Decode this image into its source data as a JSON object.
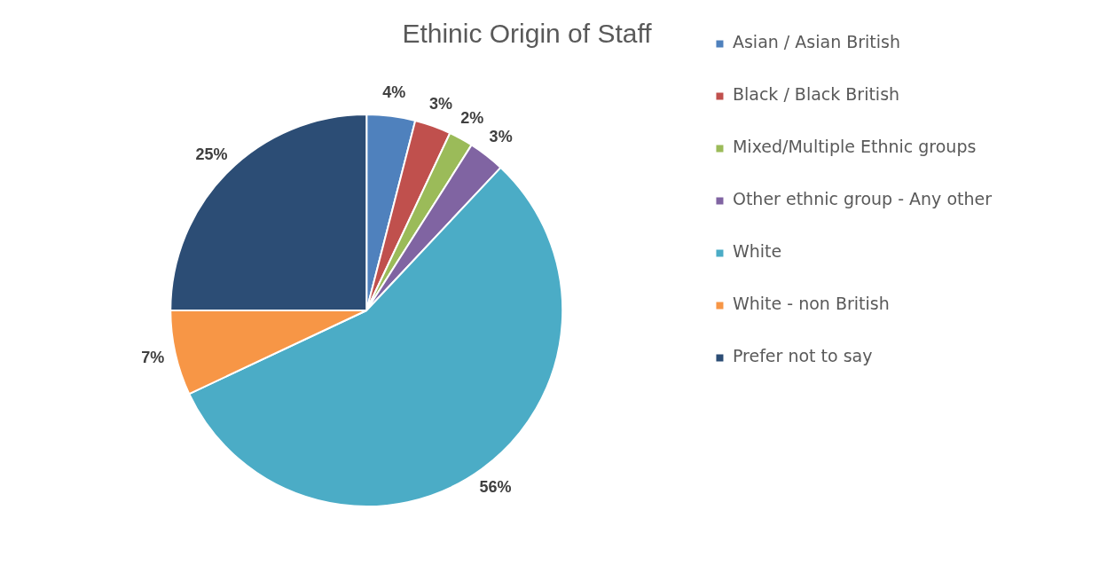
{
  "chart_data": {
    "type": "pie",
    "title": "Ethinic Origin of Staff",
    "categories": [
      "Asian / Asian British",
      "Black / Black British",
      "Mixed/Multiple Ethnic groups",
      "Other ethnic group - Any other",
      "White",
      "White - non British",
      "Prefer not to say"
    ],
    "values": [
      4,
      3,
      2,
      3,
      56,
      7,
      25
    ],
    "colors": [
      "#4f81bd",
      "#c0504d",
      "#9bbb59",
      "#8064a2",
      "#4bacc6",
      "#f79646",
      "#2c4d75"
    ],
    "value_labels": [
      "4%",
      "3%",
      "2%",
      "3%",
      "56%",
      "7%",
      "25%"
    ],
    "legend": "right"
  }
}
